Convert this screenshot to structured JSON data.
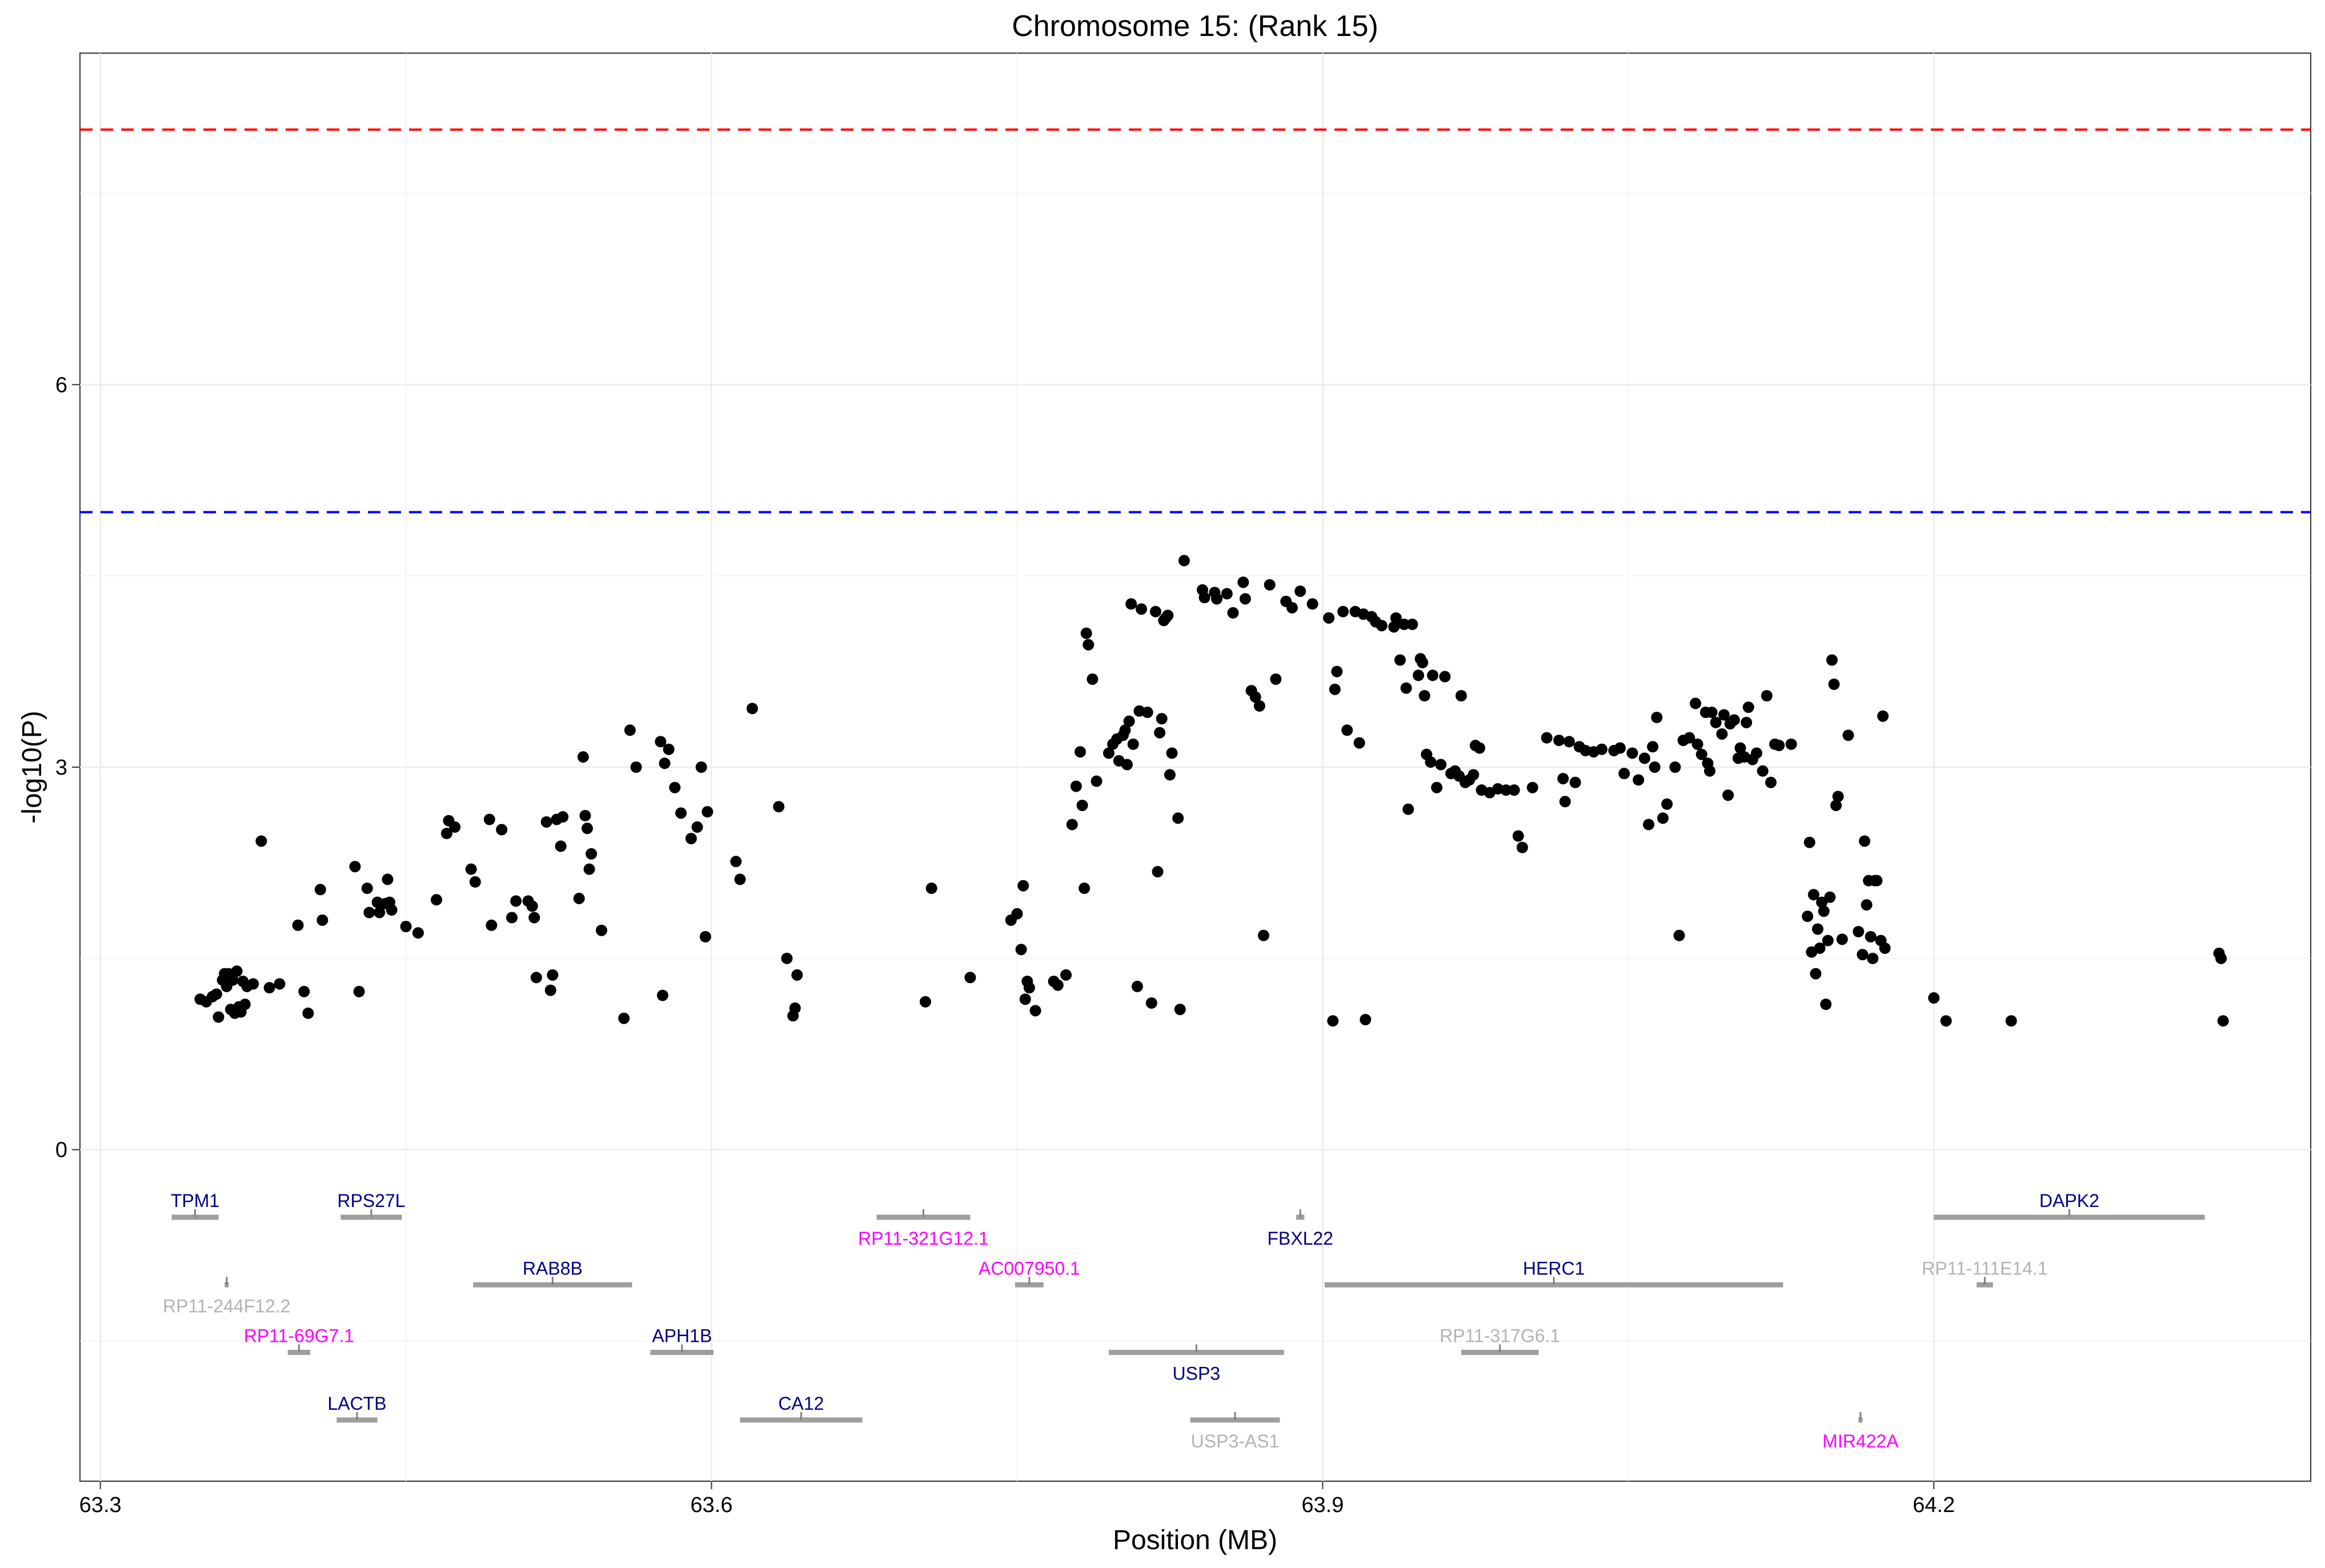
{
  "chart_data": {
    "type": "scatter",
    "title": "Chromosome 15: (Rank 15)",
    "xlabel": "Position (MB)",
    "ylabel": "-log10(P)",
    "xlim": [
      63.29,
      64.385
    ],
    "ylim": [
      -2.6,
      8.6
    ],
    "x_ticks": [
      {
        "value": 63.3,
        "label": "63.3"
      },
      {
        "value": 63.6,
        "label": "63.6"
      },
      {
        "value": 63.9,
        "label": "63.9"
      },
      {
        "value": 64.2,
        "label": "64.2"
      }
    ],
    "y_ticks": [
      {
        "value": 0,
        "label": "0"
      },
      {
        "value": 3,
        "label": "3"
      },
      {
        "value": 6,
        "label": "6"
      }
    ],
    "grid": true,
    "thresholds": [
      {
        "value": 8.0,
        "color": "#ff0000",
        "style": "dashed"
      },
      {
        "value": 5.0,
        "color": "#0000ff",
        "style": "dashed"
      }
    ],
    "point_color": "#000000",
    "gene_colors": {
      "protein_coding": "#000080",
      "lincRNA": "#ff00ff",
      "other": "#b3b3b3",
      "bar": "#9e9e9e"
    },
    "genes": [
      {
        "name": "TPM1",
        "start": 63.335,
        "end": 63.358,
        "row": 0,
        "label_pos": "above",
        "color": "#000080"
      },
      {
        "name": "RPS27L",
        "start": 63.418,
        "end": 63.448,
        "row": 0,
        "label_pos": "above",
        "color": "#000080"
      },
      {
        "name": "RP11-321G12.1",
        "start": 63.681,
        "end": 63.727,
        "row": 0,
        "label_pos": "below",
        "color": "#ff00ff"
      },
      {
        "name": "FBXL22",
        "start": 63.887,
        "end": 63.891,
        "row": 0,
        "label_pos": "below",
        "color": "#000080"
      },
      {
        "name": "DAPK2",
        "start": 64.2,
        "end": 64.333,
        "row": 0,
        "label_pos": "above",
        "color": "#000080"
      },
      {
        "name": "RP11-244F12.2",
        "start": 63.361,
        "end": 63.363,
        "row": 1,
        "label_pos": "below",
        "color": "#b3b3b3"
      },
      {
        "name": "RAB8B",
        "start": 63.483,
        "end": 63.561,
        "row": 1,
        "label_pos": "above",
        "color": "#000080"
      },
      {
        "name": "AC007950.1",
        "start": 63.749,
        "end": 63.763,
        "row": 1,
        "label_pos": "above",
        "color": "#ff00ff"
      },
      {
        "name": "HERC1",
        "start": 63.901,
        "end": 64.126,
        "row": 1,
        "label_pos": "above",
        "color": "#000080"
      },
      {
        "name": "RP11-111E14.1",
        "start": 64.221,
        "end": 64.229,
        "row": 1,
        "label_pos": "above",
        "color": "#b3b3b3"
      },
      {
        "name": "RP11-69G7.1",
        "start": 63.392,
        "end": 63.403,
        "row": 2,
        "label_pos": "above",
        "color": "#ff00ff"
      },
      {
        "name": "APH1B",
        "start": 63.57,
        "end": 63.601,
        "row": 2,
        "label_pos": "above",
        "color": "#000080"
      },
      {
        "name": "USP3",
        "start": 63.795,
        "end": 63.881,
        "row": 2,
        "label_pos": "below",
        "color": "#000080"
      },
      {
        "name": "RP11-317G6.1",
        "start": 63.968,
        "end": 64.006,
        "row": 2,
        "label_pos": "above",
        "color": "#b3b3b3"
      },
      {
        "name": "LACTB",
        "start": 63.416,
        "end": 63.436,
        "row": 3,
        "label_pos": "above",
        "color": "#000080"
      },
      {
        "name": "CA12",
        "start": 63.614,
        "end": 63.674,
        "row": 3,
        "label_pos": "above",
        "color": "#000080"
      },
      {
        "name": "USP3-AS1",
        "start": 63.835,
        "end": 63.879,
        "row": 3,
        "label_pos": "below",
        "color": "#b3b3b3"
      },
      {
        "name": "MIR422A",
        "start": 64.163,
        "end": 64.165,
        "row": 3,
        "label_pos": "below",
        "color": "#ff00ff"
      }
    ],
    "points": [
      [
        63.349,
        1.18
      ],
      [
        63.352,
        1.16
      ],
      [
        63.355,
        1.2
      ],
      [
        63.357,
        1.22
      ],
      [
        63.358,
        1.04
      ],
      [
        63.36,
        1.33
      ],
      [
        63.361,
        1.38
      ],
      [
        63.362,
        1.28
      ],
      [
        63.363,
        1.38
      ],
      [
        63.364,
        1.1
      ],
      [
        63.365,
        1.33
      ],
      [
        63.366,
        1.07
      ],
      [
        63.367,
        1.4
      ],
      [
        63.368,
        1.12
      ],
      [
        63.369,
        1.08
      ],
      [
        63.37,
        1.32
      ],
      [
        63.371,
        1.14
      ],
      [
        63.372,
        1.28
      ],
      [
        63.375,
        1.3
      ],
      [
        63.379,
        2.42
      ],
      [
        63.383,
        1.27
      ],
      [
        63.388,
        1.3
      ],
      [
        63.397,
        1.76
      ],
      [
        63.4,
        1.24
      ],
      [
        63.402,
        1.07
      ],
      [
        63.408,
        2.04
      ],
      [
        63.409,
        1.8
      ],
      [
        63.425,
        2.22
      ],
      [
        63.427,
        1.24
      ],
      [
        63.431,
        2.05
      ],
      [
        63.432,
        1.86
      ],
      [
        63.436,
        1.94
      ],
      [
        63.437,
        1.86
      ],
      [
        63.44,
        1.93
      ],
      [
        63.441,
        2.12
      ],
      [
        63.442,
        1.94
      ],
      [
        63.443,
        1.88
      ],
      [
        63.45,
        1.75
      ],
      [
        63.456,
        1.7
      ],
      [
        63.465,
        1.96
      ],
      [
        63.47,
        2.48
      ],
      [
        63.471,
        2.58
      ],
      [
        63.474,
        2.53
      ],
      [
        63.482,
        2.2
      ],
      [
        63.484,
        2.1
      ],
      [
        63.491,
        2.59
      ],
      [
        63.492,
        1.76
      ],
      [
        63.497,
        2.51
      ],
      [
        63.502,
        1.82
      ],
      [
        63.504,
        1.95
      ],
      [
        63.51,
        1.95
      ],
      [
        63.512,
        1.91
      ],
      [
        63.513,
        1.82
      ],
      [
        63.514,
        1.35
      ],
      [
        63.519,
        2.57
      ],
      [
        63.521,
        1.25
      ],
      [
        63.522,
        1.37
      ],
      [
        63.524,
        2.59
      ],
      [
        63.526,
        2.38
      ],
      [
        63.527,
        2.61
      ],
      [
        63.535,
        1.97
      ],
      [
        63.537,
        3.08
      ],
      [
        63.538,
        2.62
      ],
      [
        63.539,
        2.52
      ],
      [
        63.54,
        2.2
      ],
      [
        63.541,
        2.32
      ],
      [
        63.546,
        1.72
      ],
      [
        63.557,
        1.03
      ],
      [
        63.56,
        3.29
      ],
      [
        63.563,
        3.0
      ],
      [
        63.575,
        3.2
      ],
      [
        63.576,
        1.21
      ],
      [
        63.577,
        3.03
      ],
      [
        63.579,
        3.14
      ],
      [
        63.582,
        2.84
      ],
      [
        63.585,
        2.64
      ],
      [
        63.59,
        2.44
      ],
      [
        63.593,
        2.53
      ],
      [
        63.595,
        3.0
      ],
      [
        63.597,
        1.67
      ],
      [
        63.598,
        2.65
      ],
      [
        63.612,
        2.26
      ],
      [
        63.614,
        2.12
      ],
      [
        63.62,
        3.46
      ],
      [
        63.633,
        2.69
      ],
      [
        63.637,
        1.5
      ],
      [
        63.64,
        1.05
      ],
      [
        63.641,
        1.11
      ],
      [
        63.642,
        1.37
      ],
      [
        63.705,
        1.16
      ],
      [
        63.708,
        2.05
      ],
      [
        63.727,
        1.35
      ],
      [
        63.747,
        1.8
      ],
      [
        63.75,
        1.85
      ],
      [
        63.752,
        1.57
      ],
      [
        63.753,
        2.07
      ],
      [
        63.754,
        1.18
      ],
      [
        63.755,
        1.32
      ],
      [
        63.756,
        1.27
      ],
      [
        63.759,
        1.09
      ],
      [
        63.768,
        1.32
      ],
      [
        63.77,
        1.29
      ],
      [
        63.774,
        1.37
      ],
      [
        63.777,
        2.55
      ],
      [
        63.779,
        2.85
      ],
      [
        63.781,
        3.12
      ],
      [
        63.782,
        2.7
      ],
      [
        63.783,
        2.05
      ],
      [
        63.784,
        4.05
      ],
      [
        63.785,
        3.96
      ],
      [
        63.787,
        3.69
      ],
      [
        63.789,
        2.89
      ],
      [
        63.795,
        3.11
      ],
      [
        63.797,
        3.18
      ],
      [
        63.799,
        3.22
      ],
      [
        63.8,
        3.05
      ],
      [
        63.802,
        3.25
      ],
      [
        63.803,
        3.29
      ],
      [
        63.804,
        3.02
      ],
      [
        63.805,
        3.36
      ],
      [
        63.806,
        4.28
      ],
      [
        63.807,
        3.18
      ],
      [
        63.809,
        1.28
      ],
      [
        63.81,
        3.44
      ],
      [
        63.811,
        4.24
      ],
      [
        63.814,
        3.43
      ],
      [
        63.816,
        1.15
      ],
      [
        63.818,
        4.22
      ],
      [
        63.819,
        2.18
      ],
      [
        63.82,
        3.27
      ],
      [
        63.821,
        3.38
      ],
      [
        63.822,
        4.15
      ],
      [
        63.823,
        4.17
      ],
      [
        63.824,
        4.19
      ],
      [
        63.825,
        2.94
      ],
      [
        63.826,
        3.11
      ],
      [
        63.829,
        2.6
      ],
      [
        63.83,
        1.1
      ],
      [
        63.832,
        4.62
      ],
      [
        63.841,
        4.39
      ],
      [
        63.842,
        4.33
      ],
      [
        63.847,
        4.37
      ],
      [
        63.848,
        4.32
      ],
      [
        63.853,
        4.36
      ],
      [
        63.856,
        4.21
      ],
      [
        63.861,
        4.45
      ],
      [
        63.862,
        4.32
      ],
      [
        63.865,
        3.6
      ],
      [
        63.867,
        3.55
      ],
      [
        63.869,
        3.48
      ],
      [
        63.871,
        1.68
      ],
      [
        63.874,
        4.43
      ],
      [
        63.877,
        3.69
      ],
      [
        63.882,
        4.3
      ],
      [
        63.885,
        4.25
      ],
      [
        63.889,
        4.38
      ],
      [
        63.895,
        4.28
      ],
      [
        63.903,
        4.17
      ],
      [
        63.905,
        1.01
      ],
      [
        63.906,
        3.61
      ],
      [
        63.907,
        3.75
      ],
      [
        63.91,
        4.22
      ],
      [
        63.912,
        3.29
      ],
      [
        63.916,
        4.22
      ],
      [
        63.918,
        3.19
      ],
      [
        63.92,
        4.2
      ],
      [
        63.921,
        1.02
      ],
      [
        63.924,
        4.18
      ],
      [
        63.926,
        4.14
      ],
      [
        63.929,
        4.11
      ],
      [
        63.935,
        4.1
      ],
      [
        63.936,
        4.17
      ],
      [
        63.938,
        3.84
      ],
      [
        63.94,
        4.12
      ],
      [
        63.941,
        3.62
      ],
      [
        63.942,
        2.67
      ],
      [
        63.944,
        4.12
      ],
      [
        63.947,
        3.72
      ],
      [
        63.948,
        3.85
      ],
      [
        63.949,
        3.82
      ],
      [
        63.95,
        3.56
      ],
      [
        63.951,
        3.1
      ],
      [
        63.953,
        3.04
      ],
      [
        63.954,
        3.72
      ],
      [
        63.956,
        2.84
      ],
      [
        63.958,
        3.02
      ],
      [
        63.96,
        3.71
      ],
      [
        63.963,
        2.95
      ],
      [
        63.965,
        2.97
      ],
      [
        63.967,
        2.93
      ],
      [
        63.968,
        3.56
      ],
      [
        63.97,
        2.88
      ],
      [
        63.972,
        2.9
      ],
      [
        63.974,
        2.94
      ],
      [
        63.975,
        3.17
      ],
      [
        63.977,
        3.15
      ],
      [
        63.978,
        2.82
      ],
      [
        63.982,
        2.8
      ],
      [
        63.986,
        2.83
      ],
      [
        63.99,
        2.82
      ],
      [
        63.994,
        2.82
      ],
      [
        63.996,
        2.46
      ],
      [
        63.998,
        2.37
      ],
      [
        64.003,
        2.84
      ],
      [
        64.01,
        3.23
      ],
      [
        64.016,
        3.21
      ],
      [
        64.018,
        2.91
      ],
      [
        64.019,
        2.73
      ],
      [
        64.021,
        3.2
      ],
      [
        64.024,
        2.88
      ],
      [
        64.026,
        3.16
      ],
      [
        64.029,
        3.13
      ],
      [
        64.033,
        3.12
      ],
      [
        64.037,
        3.14
      ],
      [
        64.043,
        3.13
      ],
      [
        64.046,
        3.15
      ],
      [
        64.048,
        2.95
      ],
      [
        64.052,
        3.11
      ],
      [
        64.055,
        2.9
      ],
      [
        64.058,
        3.07
      ],
      [
        64.06,
        2.55
      ],
      [
        64.062,
        3.16
      ],
      [
        64.063,
        3.0
      ],
      [
        64.064,
        3.39
      ],
      [
        64.067,
        2.6
      ],
      [
        64.069,
        2.71
      ],
      [
        64.073,
        3.0
      ],
      [
        64.075,
        1.68
      ],
      [
        64.077,
        3.21
      ],
      [
        64.08,
        3.23
      ],
      [
        64.083,
        3.5
      ],
      [
        64.084,
        3.18
      ],
      [
        64.086,
        3.1
      ],
      [
        64.088,
        3.43
      ],
      [
        64.089,
        3.03
      ],
      [
        64.09,
        2.97
      ],
      [
        64.091,
        3.43
      ],
      [
        64.093,
        3.35
      ],
      [
        64.096,
        3.26
      ],
      [
        64.097,
        3.41
      ],
      [
        64.099,
        2.78
      ],
      [
        64.1,
        3.34
      ],
      [
        64.102,
        3.37
      ],
      [
        64.104,
        3.07
      ],
      [
        64.105,
        3.15
      ],
      [
        64.107,
        3.08
      ],
      [
        64.108,
        3.35
      ],
      [
        64.109,
        3.47
      ],
      [
        64.111,
        3.06
      ],
      [
        64.113,
        3.11
      ],
      [
        64.116,
        2.97
      ],
      [
        64.118,
        3.56
      ],
      [
        64.12,
        2.88
      ],
      [
        64.122,
        3.18
      ],
      [
        64.124,
        3.17
      ],
      [
        64.13,
        3.18
      ],
      [
        64.138,
        1.83
      ],
      [
        64.139,
        2.41
      ],
      [
        64.14,
        1.55
      ],
      [
        64.141,
        2.0
      ],
      [
        64.142,
        1.38
      ],
      [
        64.143,
        1.73
      ],
      [
        64.144,
        1.58
      ],
      [
        64.145,
        1.94
      ],
      [
        64.146,
        1.87
      ],
      [
        64.147,
        1.14
      ],
      [
        64.148,
        1.64
      ],
      [
        64.149,
        1.98
      ],
      [
        64.15,
        3.84
      ],
      [
        64.151,
        3.65
      ],
      [
        64.152,
        2.7
      ],
      [
        64.153,
        2.77
      ],
      [
        64.155,
        1.65
      ],
      [
        64.158,
        3.25
      ],
      [
        64.163,
        1.71
      ],
      [
        64.165,
        1.53
      ],
      [
        64.166,
        2.42
      ],
      [
        64.167,
        1.92
      ],
      [
        64.168,
        2.11
      ],
      [
        64.169,
        1.67
      ],
      [
        64.17,
        1.5
      ],
      [
        64.171,
        2.11
      ],
      [
        64.172,
        2.11
      ],
      [
        64.174,
        1.64
      ],
      [
        64.175,
        3.4
      ],
      [
        64.176,
        1.58
      ],
      [
        64.2,
        1.19
      ],
      [
        64.206,
        1.01
      ],
      [
        64.238,
        1.01
      ],
      [
        64.34,
        1.54
      ],
      [
        64.341,
        1.5
      ],
      [
        64.342,
        1.01
      ]
    ]
  }
}
